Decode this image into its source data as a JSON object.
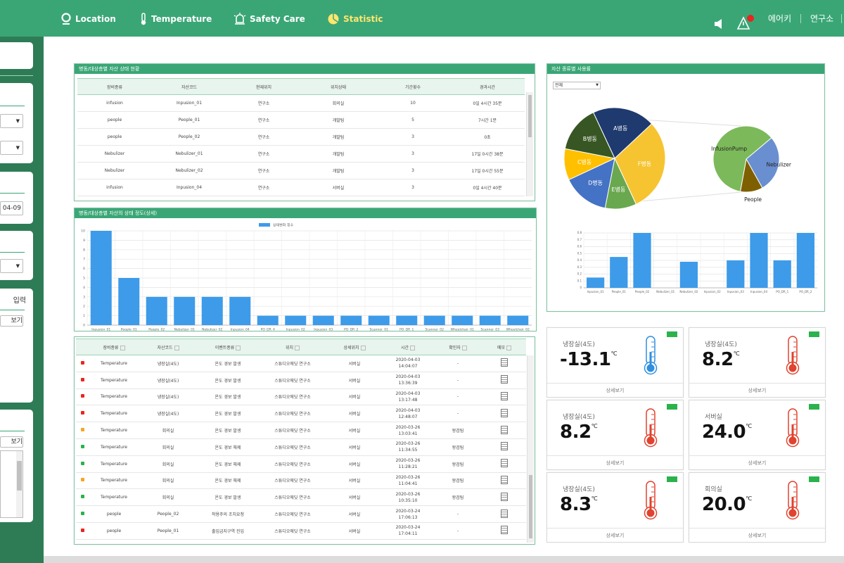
{
  "nav": {
    "items": [
      "Location",
      "Temperature",
      "Safety Care",
      "Statistic"
    ],
    "user": "에어키",
    "org": "연구소"
  },
  "sidebar": {
    "date": "04-09",
    "input": "입력",
    "view": "보기",
    "view2": "보기"
  },
  "asset_table": {
    "title": "병동/대상층별 자산 상태 현황",
    "columns": [
      "장비종류",
      "자산코드",
      "현재위치",
      "위치상태",
      "기간횟수",
      "경과시간"
    ],
    "rows": [
      [
        "infusion",
        "Inpusion_01",
        "연구소",
        "회의실",
        "10",
        "0일 4시간 35분"
      ],
      [
        "people",
        "People_01",
        "연구소",
        "개발팀",
        "5",
        "7시간 1분"
      ],
      [
        "people",
        "People_02",
        "연구소",
        "개발팀",
        "3",
        "0초"
      ],
      [
        "Nebulizer",
        "Nebulizer_01",
        "연구소",
        "개발팀",
        "3",
        "17일 0시간 38분"
      ],
      [
        "Nebulizer",
        "Nebulizer_02",
        "연구소",
        "개발팀",
        "3",
        "17일 0시간 55분"
      ],
      [
        "infusion",
        "Inpusion_04",
        "연구소",
        "서버실",
        "3",
        "0일 4시간 40분"
      ]
    ]
  },
  "alarm_table": {
    "columns": [
      "장비종류",
      "자산코드",
      "이벤트종류",
      "위치",
      "상세위치",
      "시간",
      "확인자",
      "메모"
    ],
    "rows": [
      {
        "status_color": "#e8251f",
        "cells": [
          "Temperature",
          "냉장실(4도)",
          "온도 경보 발생",
          "스튜디오에딧 연구소",
          "서버실",
          "2020-04-03 14:04:07",
          "-"
        ]
      },
      {
        "status_color": "#e8251f",
        "cells": [
          "Temperature",
          "냉장실(4도)",
          "온도 경보 발생",
          "스튜디오에딧 연구소",
          "서버실",
          "2020-04-03 13:36:39",
          "-"
        ]
      },
      {
        "status_color": "#e8251f",
        "cells": [
          "Temperature",
          "냉장실(4도)",
          "온도 경보 발생",
          "스튜디오에딧 연구소",
          "서버실",
          "2020-04-03 13:17:48",
          "-"
        ]
      },
      {
        "status_color": "#e8251f",
        "cells": [
          "Temperature",
          "냉장실(4도)",
          "온도 경보 발생",
          "스튜디오에딧 연구소",
          "서버실",
          "2020-04-03 12:48:07",
          "-"
        ]
      },
      {
        "status_color": "#f5a623",
        "cells": [
          "Temperature",
          "회의실",
          "온도 경보 발생",
          "스튜디오에딧 연구소",
          "서버실",
          "2020-03-26 13:03:41",
          "왕검팀"
        ]
      },
      {
        "status_color": "#2bb24c",
        "cells": [
          "Temperature",
          "회의실",
          "온도 경보 해제",
          "스튜디오에딧 연구소",
          "서버실",
          "2020-03-26 11:34:55",
          "왕검팀"
        ]
      },
      {
        "status_color": "#2bb24c",
        "cells": [
          "Temperature",
          "회의실",
          "온도 경보 해제",
          "스튜디오에딧 연구소",
          "서버실",
          "2020-03-26 11:28:21",
          "왕검팀"
        ]
      },
      {
        "status_color": "#f5a623",
        "cells": [
          "Temperature",
          "회의실",
          "온도 경보 해제",
          "스튜디오에딧 연구소",
          "서버실",
          "2020-03-26 11:04:41",
          "왕검팀"
        ]
      },
      {
        "status_color": "#2bb24c",
        "cells": [
          "Temperature",
          "회의실",
          "온도 경보 발생",
          "스튜디오에딧 연구소",
          "서버실",
          "2020-03-26 10:35:10",
          "왕검팀"
        ]
      },
      {
        "status_color": "#2bb24c",
        "cells": [
          "people",
          "People_02",
          "착용주의 조치요청",
          "스튜디오에딧 연구소",
          "서버실",
          "2020-03-24 17:06:13",
          "-"
        ]
      },
      {
        "status_color": "#e8251f",
        "cells": [
          "people",
          "People_01",
          "출입금지구역 진입",
          "스튜디오에딧 연구소",
          "서버실",
          "2020-03-24 17:04:11",
          "-"
        ]
      }
    ]
  },
  "usage_panel": {
    "title": "자산 종류별 사용률",
    "filter": "전체"
  },
  "chart_data": [
    {
      "type": "bar",
      "title": "병동/대상층별 자산의 상태 정도(상세)",
      "categories": [
        "Inpusion_01",
        "People_01",
        "People_02",
        "Nebulizer_01",
        "Nebulizer_02",
        "Inpusion_04",
        "PO_DR_4",
        "Inpusion_02",
        "Inpusion_03",
        "PO_DR_2",
        "Scanner_01",
        "PO_DR_1",
        "Scanner_02",
        "Wheelchair_01",
        "Scanner_03",
        "Wheelchair_02"
      ],
      "series": [
        {
          "name": "상태변화 횟수",
          "color": "#3d9be9",
          "values": [
            10,
            5,
            3,
            3,
            3,
            3,
            1,
            1,
            1,
            1,
            1,
            1,
            1,
            1,
            1,
            1
          ]
        }
      ],
      "ylim": [
        0,
        10
      ],
      "yticks": [
        0,
        1,
        2,
        3,
        4,
        5,
        6,
        7,
        8,
        9,
        10
      ],
      "grid": true
    },
    {
      "type": "pie",
      "categories": [
        "A병동",
        "F병동",
        "E병동",
        "D병동",
        "C병동",
        "B병동"
      ],
      "values": [
        20,
        30,
        10,
        15,
        10,
        15
      ],
      "colors": [
        "#1f3a6e",
        "#f6c431",
        "#6aa84f",
        "#4472c4",
        "#ffc000",
        "#375623"
      ]
    },
    {
      "type": "pie",
      "categories": [
        "Nebulizer",
        "People",
        "InfusionPump"
      ],
      "values": [
        28,
        11,
        61
      ],
      "colors": [
        "#6a8fd0",
        "#7f6000",
        "#7cb95a"
      ]
    },
    {
      "type": "bar",
      "categories": [
        "Inpusion_01",
        "People_01",
        "People_02",
        "Nebulizer_01",
        "Nebulizer_02",
        "Inpusion_02",
        "Inpusion_03",
        "Inpusion_04",
        "PO_DR_1",
        "PO_DR_2"
      ],
      "series": [
        {
          "color": "#3d9be9",
          "values": [
            0.15,
            0.45,
            0.8,
            0,
            0.38,
            0,
            0.4,
            0.8,
            0.4,
            0.8
          ]
        }
      ],
      "ylim": [
        0,
        0.8
      ],
      "yticks": [
        0,
        0.1,
        0.2,
        0.3,
        0.4,
        0.5,
        0.6,
        0.7,
        0.8
      ],
      "grid": true
    }
  ],
  "temperature_cards": [
    {
      "name": "냉장실(4도)",
      "value": "-13.1",
      "unit": "℃",
      "color": "#2f8fe0",
      "link": "상세보기"
    },
    {
      "name": "냉장실(4도)",
      "value": "8.2",
      "unit": "℃",
      "color": "#e0432f",
      "link": "상세보기"
    },
    {
      "name": "냉장실(4도)",
      "value": "8.2",
      "unit": "℃",
      "color": "#e0432f",
      "link": "상세보기"
    },
    {
      "name": "서버실",
      "value": "24.0",
      "unit": "℃",
      "color": "#e0432f",
      "link": "상세보기"
    },
    {
      "name": "냉장실(4도)",
      "value": "8.3",
      "unit": "℃",
      "color": "#e0432f",
      "link": "상세보기"
    },
    {
      "name": "회의실",
      "value": "20.0",
      "unit": "℃",
      "color": "#e0432f",
      "link": "상세보기"
    }
  ]
}
